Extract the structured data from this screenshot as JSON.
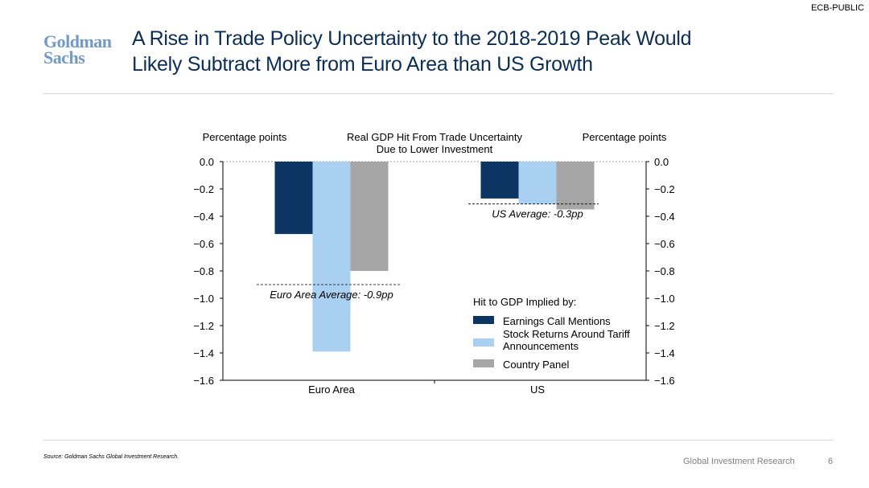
{
  "header": {
    "classification": "ECB-PUBLIC",
    "logo_line1": "Goldman",
    "logo_line2": "Sachs",
    "title_line1": "A Rise in Trade Policy Uncertainty to the 2018-2019 Peak Would",
    "title_line2": "Likely Subtract More from Euro Area than US Growth"
  },
  "footer": {
    "source": "Source: Goldman Sachs Global Investment Research.",
    "label": "Global Investment Research",
    "page": "6"
  },
  "colors": {
    "title": "#0c2e54",
    "series_earnings": "#0c3563",
    "series_stock": "#a9d0f0",
    "series_country": "#a6a6a6",
    "logo": "#7399c6"
  },
  "chart_data": {
    "type": "bar",
    "title_line1": "Real GDP Hit From Trade Uncertainty",
    "title_line2": "Due to Lower Investment",
    "ylabel_left": "Percentage points",
    "ylabel_right": "Percentage points",
    "ylim": [
      -1.6,
      0.0
    ],
    "yticks": [
      0.0,
      -0.2,
      -0.4,
      -0.6,
      -0.8,
      -1.0,
      -1.2,
      -1.4,
      -1.6
    ],
    "ytick_labels": [
      "0.0",
      "−0.2",
      "−0.4",
      "−0.6",
      "−0.8",
      "−1.0",
      "−1.2",
      "−1.4",
      "−1.6"
    ],
    "categories": [
      "Euro Area",
      "US"
    ],
    "series": [
      {
        "name": "Earnings Call Mentions",
        "values": [
          -0.53,
          -0.27
        ]
      },
      {
        "name": "Stock Returns Around Tariff Announcements",
        "values": [
          -1.39,
          -0.31
        ]
      },
      {
        "name": "Country Panel",
        "values": [
          -0.8,
          -0.35
        ]
      }
    ],
    "averages": [
      {
        "category": "Euro Area",
        "value": -0.9,
        "label": "Euro Area Average: -0.9pp"
      },
      {
        "category": "US",
        "value": -0.31,
        "label": "US Average: -0.3pp"
      }
    ],
    "legend_title": "Hit to GDP Implied by:",
    "legend_items": [
      {
        "lines": [
          "Earnings Call Mentions"
        ]
      },
      {
        "lines": [
          "Stock Returns Around Tariff",
          "Announcements"
        ]
      },
      {
        "lines": [
          "Country Panel"
        ]
      }
    ]
  }
}
